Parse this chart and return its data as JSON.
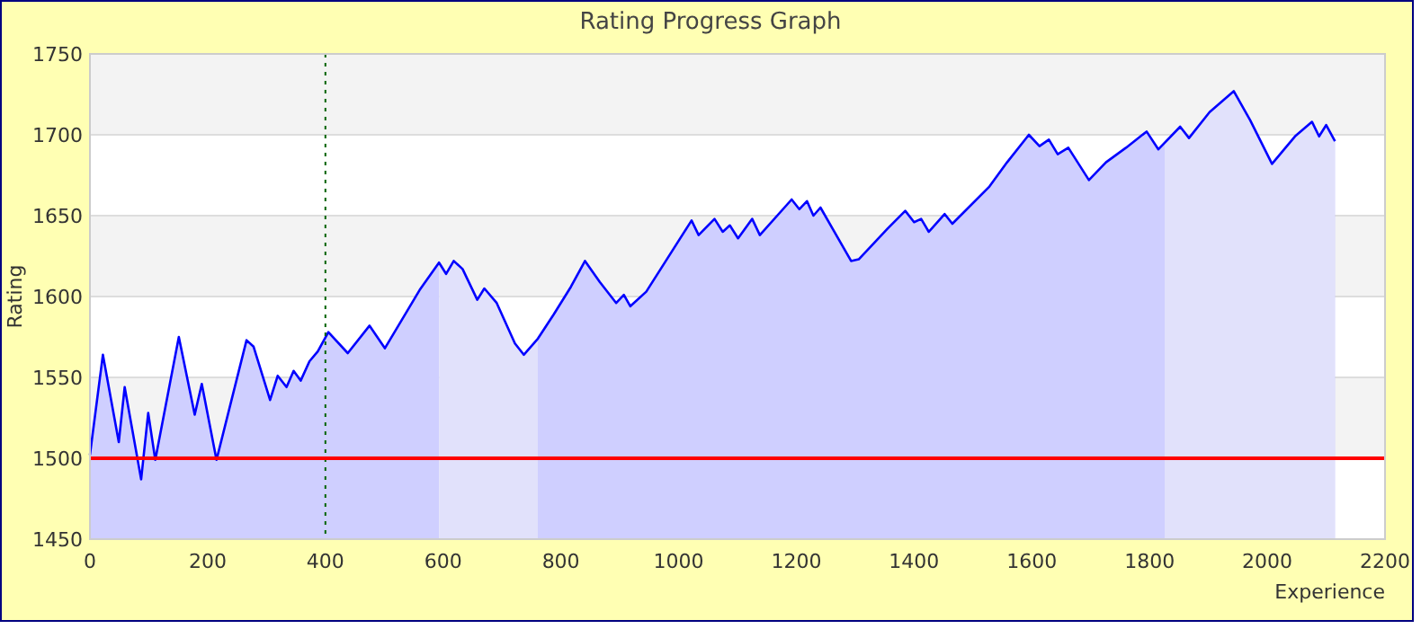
{
  "chart_data": {
    "type": "area",
    "title": "Rating Progress Graph",
    "xlabel": "Experience",
    "ylabel": "Rating",
    "xlim": [
      0,
      2200
    ],
    "xticks": [
      0,
      200,
      400,
      600,
      800,
      1000,
      1200,
      1400,
      1600,
      1800,
      2000,
      2200
    ],
    "ylim": [
      1450,
      1750
    ],
    "yticks": [
      1450,
      1500,
      1550,
      1600,
      1650,
      1700,
      1750
    ],
    "grid": "y",
    "series": [
      {
        "color": "#0000ff",
        "x": [
          0,
          22,
          49,
          59,
          87,
          99,
          111,
          151,
          178,
          190,
          215,
          266,
          278,
          306,
          319,
          334,
          346,
          358,
          373,
          387,
          405,
          438,
          475,
          501,
          560,
          593,
          605,
          618,
          633,
          658,
          670,
          691,
          722,
          737,
          761,
          788,
          817,
          841,
          866,
          894,
          907,
          918,
          945,
          1022,
          1034,
          1061,
          1075,
          1087,
          1101,
          1125,
          1138,
          1192,
          1205,
          1218,
          1229,
          1241,
          1293,
          1306,
          1355,
          1385,
          1400,
          1412,
          1425,
          1452,
          1465,
          1528,
          1558,
          1595,
          1613,
          1629,
          1644,
          1662,
          1697,
          1726,
          1760,
          1795,
          1815,
          1852,
          1867,
          1902,
          1943,
          1971,
          2008,
          2047,
          2076,
          2088,
          2100,
          2115
        ],
        "values": [
          1502,
          1564,
          1510,
          1544,
          1487,
          1528,
          1499,
          1575,
          1527,
          1546,
          1499,
          1573,
          1569,
          1536,
          1551,
          1544,
          1554,
          1548,
          1560,
          1566,
          1578,
          1565,
          1582,
          1568,
          1604,
          1621,
          1614,
          1622,
          1617,
          1598,
          1605,
          1596,
          1571,
          1564,
          1574,
          1589,
          1606,
          1622,
          1609,
          1596,
          1601,
          1594,
          1603,
          1647,
          1638,
          1648,
          1640,
          1644,
          1636,
          1648,
          1638,
          1660,
          1654,
          1659,
          1650,
          1655,
          1622,
          1623,
          1642,
          1653,
          1646,
          1648,
          1640,
          1651,
          1645,
          1668,
          1683,
          1700,
          1693,
          1697,
          1688,
          1692,
          1672,
          1683,
          1692,
          1702,
          1691,
          1705,
          1698,
          1714,
          1727,
          1709,
          1682,
          1699,
          1708,
          1699,
          1706,
          1696
        ]
      }
    ],
    "ref_lines": [
      {
        "axis": "x",
        "value": 400,
        "color": "#006400",
        "line_style": "dotted"
      },
      {
        "axis": "y",
        "value": 1500,
        "color": "#ff0000",
        "line_style": "solid"
      }
    ],
    "bands": [
      {
        "axis": "x",
        "from": 593,
        "to": 761,
        "color": "#e1e1fb"
      },
      {
        "axis": "x",
        "from": 1825,
        "to": 2115,
        "color": "#e1e1fb"
      }
    ]
  }
}
